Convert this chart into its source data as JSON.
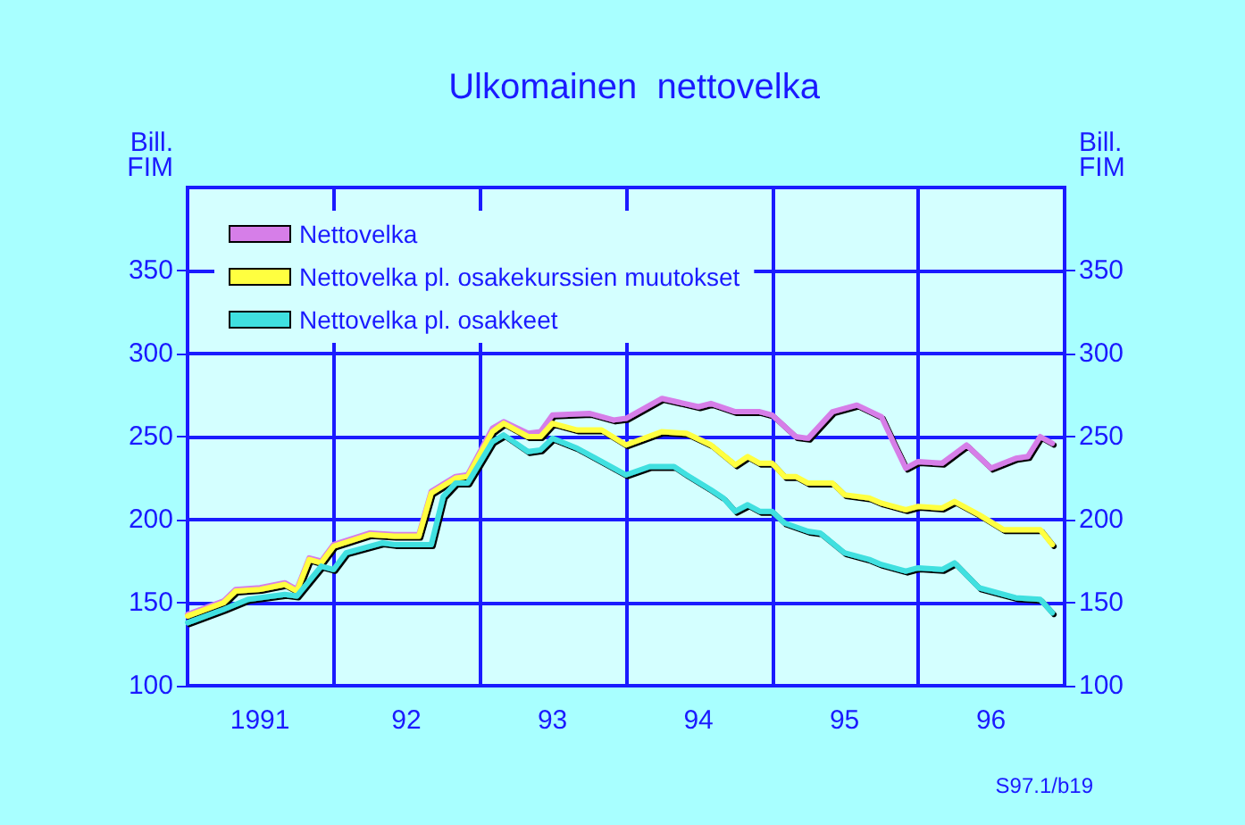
{
  "chart_data": {
    "type": "line",
    "title": "Ulkomainen  nettovelka",
    "ylabel": "Bill.\nFIM",
    "y2label": "Bill.\nFIM",
    "xlim": [
      "1991-01",
      "1997-01"
    ],
    "xticks": [
      {
        "value": "1991-07",
        "label": "1991"
      },
      {
        "value": "1992-01",
        "label": null
      },
      {
        "value": "1992-07",
        "label": "92"
      },
      {
        "value": "1993-01",
        "label": null
      },
      {
        "value": "1993-07",
        "label": "93"
      },
      {
        "value": "1994-01",
        "label": null
      },
      {
        "value": "1994-07",
        "label": "94"
      },
      {
        "value": "1995-01",
        "label": null
      },
      {
        "value": "1995-07",
        "label": "95"
      },
      {
        "value": "1996-01",
        "label": null
      },
      {
        "value": "1996-07",
        "label": "96"
      }
    ],
    "ylim": [
      100,
      400
    ],
    "yticks": [
      100,
      150,
      200,
      250,
      300,
      350
    ],
    "y2lim": [
      100,
      400
    ],
    "y2ticks": [
      100,
      150,
      200,
      250,
      300,
      350
    ],
    "grid": true,
    "legend": "top left",
    "marker": "none",
    "line_style": "solid",
    "series": [
      {
        "name": "Nettovelka",
        "color": "#d67ee8",
        "x": [
          "1991-01",
          "1991-04",
          "1991-05",
          "1991-07",
          "1991-09",
          "1991-10",
          "1991-11",
          "1991-12",
          "1992-01",
          "1992-04",
          "1992-06",
          "1992-08",
          "1992-09",
          "1992-11",
          "1992-12",
          "1993-02",
          "1993-03",
          "1993-05",
          "1993-06",
          "1993-07",
          "1993-10",
          "1993-12",
          "1994-01",
          "1994-04",
          "1994-07",
          "1994-08",
          "1994-10",
          "1994-12",
          "1995-01",
          "1995-03",
          "1995-04",
          "1995-06",
          "1995-08",
          "1995-10",
          "1995-11",
          "1995-12",
          "1996-01",
          "1996-03",
          "1996-05",
          "1996-07",
          "1996-09",
          "1996-10",
          "1996-11",
          "1996-12"
        ],
        "values": [
          143,
          151,
          158,
          159,
          162,
          158,
          177,
          175,
          185,
          192,
          191,
          191,
          217,
          226,
          227,
          255,
          259,
          252,
          253,
          263,
          264,
          260,
          261,
          273,
          268,
          270,
          265,
          265,
          263,
          250,
          249,
          265,
          269,
          262,
          246,
          231,
          235,
          234,
          245,
          231,
          237,
          238,
          250,
          246
        ]
      },
      {
        "name": "Nettovelka pl. osakekurssien muutokset",
        "color": "#ffff40",
        "x": [
          "1991-01",
          "1991-04",
          "1991-05",
          "1991-07",
          "1991-09",
          "1991-10",
          "1991-11",
          "1991-12",
          "1992-01",
          "1992-04",
          "1992-06",
          "1992-08",
          "1992-09",
          "1992-11",
          "1992-12",
          "1993-02",
          "1993-03",
          "1993-05",
          "1993-06",
          "1993-07",
          "1993-09",
          "1993-11",
          "1994-01",
          "1994-04",
          "1994-06",
          "1994-08",
          "1994-10",
          "1994-11",
          "1994-12",
          "1995-01",
          "1995-02",
          "1995-03",
          "1995-04",
          "1995-06",
          "1995-07",
          "1995-09",
          "1995-10",
          "1995-12",
          "1996-01",
          "1996-03",
          "1996-04",
          "1996-06",
          "1996-08",
          "1996-11",
          "1996-12"
        ],
        "values": [
          142,
          150,
          157,
          158,
          161,
          157,
          176,
          174,
          184,
          191,
          190,
          190,
          216,
          225,
          226,
          253,
          258,
          250,
          250,
          258,
          254,
          254,
          245,
          253,
          252,
          245,
          233,
          238,
          234,
          234,
          226,
          226,
          222,
          222,
          215,
          213,
          210,
          206,
          208,
          207,
          211,
          203,
          194,
          194,
          185
        ]
      },
      {
        "name": "Nettovelka pl. osakkeet",
        "color": "#40e0e0",
        "x": [
          "1991-01",
          "1991-04",
          "1991-06",
          "1991-09",
          "1991-10",
          "1991-12",
          "1992-01",
          "1992-02",
          "1992-05",
          "1992-06",
          "1992-09",
          "1992-10",
          "1992-11",
          "1992-12",
          "1993-02",
          "1993-03",
          "1993-05",
          "1993-06",
          "1993-07",
          "1993-09",
          "1993-11",
          "1994-01",
          "1994-03",
          "1994-05",
          "1994-06",
          "1994-08",
          "1994-09",
          "1994-10",
          "1994-11",
          "1994-12",
          "1995-01",
          "1995-02",
          "1995-04",
          "1995-05",
          "1995-07",
          "1995-09",
          "1995-10",
          "1995-12",
          "1996-01",
          "1996-03",
          "1996-04",
          "1996-06",
          "1996-09",
          "1996-11",
          "1996-12"
        ],
        "values": [
          138,
          146,
          152,
          155,
          154,
          172,
          170,
          180,
          186,
          185,
          185,
          214,
          222,
          222,
          247,
          251,
          241,
          242,
          249,
          243,
          235,
          227,
          232,
          232,
          227,
          218,
          213,
          205,
          209,
          205,
          205,
          198,
          193,
          192,
          180,
          176,
          173,
          169,
          171,
          170,
          174,
          159,
          153,
          152,
          144
        ]
      }
    ],
    "annotations": [
      "S97.1/b19"
    ]
  }
}
